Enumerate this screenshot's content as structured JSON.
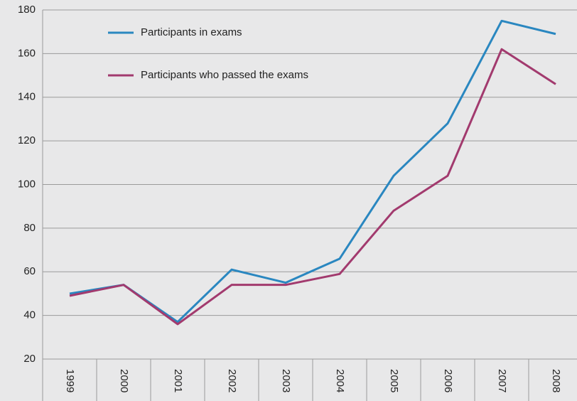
{
  "chart_data": {
    "type": "line",
    "categories": [
      "1999",
      "2000",
      "2001",
      "2002",
      "2003",
      "2004",
      "2005",
      "2006",
      "2007",
      "2008"
    ],
    "series": [
      {
        "name": "Participants in exams",
        "color": "#2a87c0",
        "values": [
          50,
          54,
          37,
          61,
          55,
          66,
          104,
          128,
          175,
          169
        ]
      },
      {
        "name": "Participants who passed the exams",
        "color": "#a23a6e",
        "values": [
          49,
          54,
          36,
          54,
          54,
          59,
          88,
          104,
          162,
          146
        ]
      }
    ],
    "ylim": [
      20,
      180
    ],
    "yticks": [
      20,
      40,
      60,
      80,
      100,
      120,
      140,
      160,
      180
    ],
    "grid": true
  }
}
